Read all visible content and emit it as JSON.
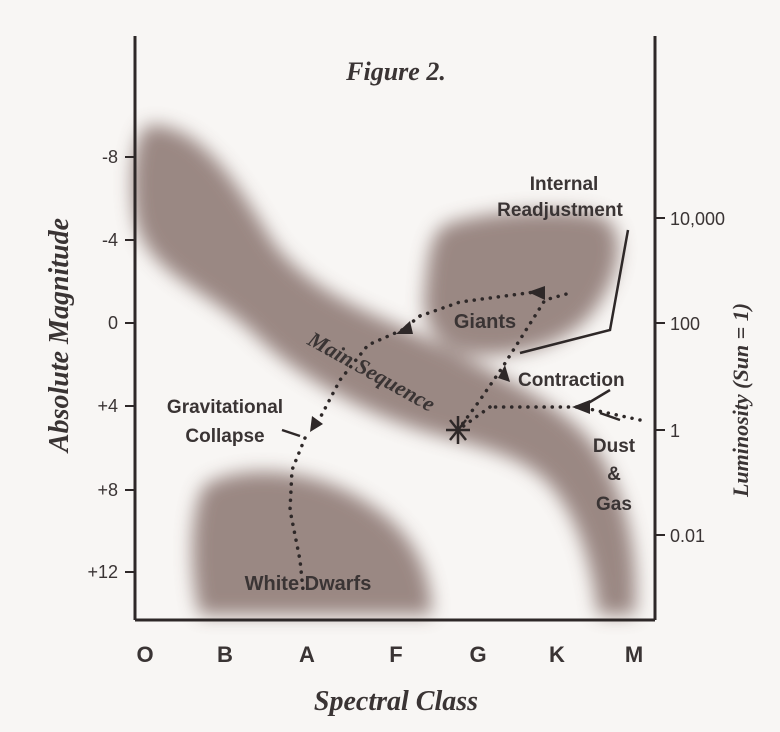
{
  "chart_data": {
    "type": "scatter",
    "title": "Figure 2.",
    "xlabel": "Spectral Class",
    "ylabel_left": "Absolute Magnitude",
    "ylabel_right": "Luminosity (Sun = 1)",
    "x_categories": [
      "O",
      "B",
      "A",
      "F",
      "G",
      "K",
      "M"
    ],
    "y_left_ticks": [
      "-8",
      "-4",
      "0",
      "+4",
      "+8",
      "+12"
    ],
    "y_right_ticks": [
      "10,000",
      "100",
      "1",
      "0.01"
    ],
    "regions": {
      "main_sequence": "Main Sequence",
      "giants": "Giants",
      "white_dwarfs": "White Dwarfs"
    },
    "annotations": {
      "internal_readjustment_1": "Internal",
      "internal_readjustment_2": "Readjustment",
      "contraction": "Contraction",
      "gravitational_1": "Gravitational",
      "gravitational_2": "Collapse",
      "dust_1": "Dust",
      "dust_2": "&",
      "dust_3": "Gas"
    },
    "colors": {
      "band": "#8a7470",
      "text": "#3a3434",
      "paper": "#f8f6f4"
    }
  }
}
